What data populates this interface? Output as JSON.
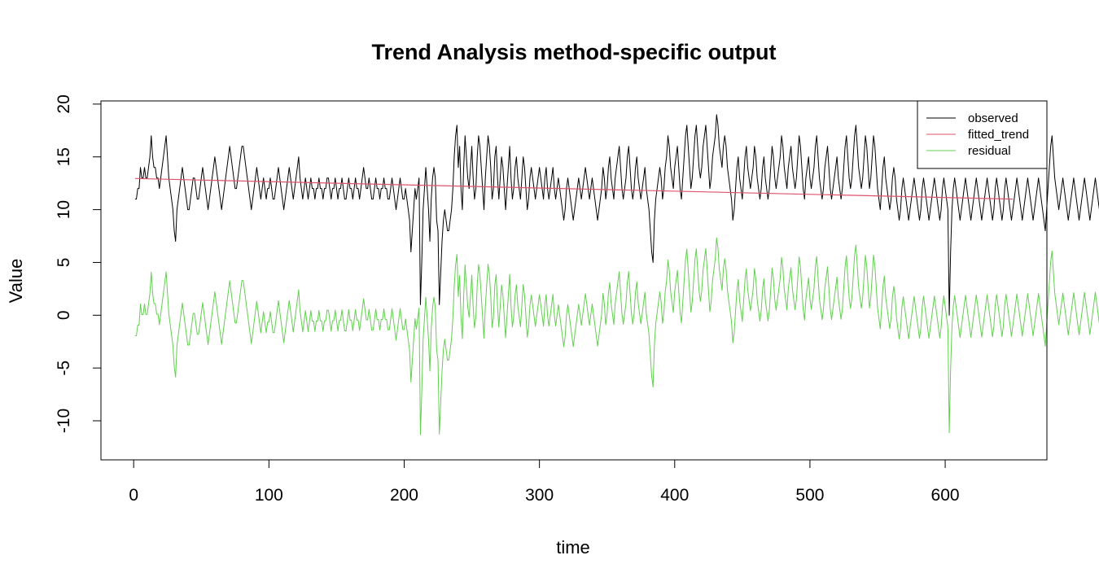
{
  "chart_data": {
    "type": "line",
    "title": "Trend Analysis method-specific output",
    "xlabel": "time",
    "ylabel": "Value",
    "xlim": [
      -24.2,
      675.2
    ],
    "ylim": [
      -13.7,
      20.3
    ],
    "xticks": [
      0,
      100,
      200,
      300,
      400,
      500,
      600
    ],
    "yticks": [
      -10,
      -5,
      0,
      5,
      10,
      15,
      20
    ],
    "legend_position": "top-right",
    "grid": false,
    "series": [
      {
        "name": "observed",
        "color": "#000000",
        "x_start": 1,
        "x_step": 1,
        "values": [
          11,
          11,
          12,
          12,
          14,
          13,
          13,
          14,
          13,
          13,
          14,
          15,
          17,
          15,
          14,
          14,
          13,
          13,
          12,
          13,
          14,
          15,
          16,
          17,
          15,
          13,
          12,
          11,
          10,
          8,
          7,
          10,
          11,
          12,
          13,
          14,
          13,
          12,
          11,
          10,
          10,
          11,
          12,
          13,
          13,
          12,
          11,
          11,
          12,
          13,
          14,
          13,
          12,
          11,
          10,
          11,
          12,
          13,
          14,
          15,
          14,
          13,
          12,
          11,
          10,
          11,
          12,
          13,
          14,
          15,
          16,
          15,
          14,
          13,
          12,
          12,
          13,
          14,
          15,
          16,
          16,
          15,
          14,
          13,
          12,
          11,
          10,
          11,
          12,
          13,
          14,
          13,
          12,
          11,
          12,
          13,
          12,
          11,
          12,
          12,
          13,
          12,
          11,
          11,
          12,
          13,
          14,
          13,
          12,
          11,
          10,
          11,
          12,
          13,
          14,
          13,
          12,
          11,
          12,
          13,
          14,
          15,
          13,
          12,
          11,
          12,
          13,
          12,
          11,
          12,
          13,
          12,
          12,
          11,
          12,
          12,
          13,
          12,
          12,
          11,
          12,
          12,
          13,
          13,
          12,
          11,
          12,
          12,
          13,
          12,
          11,
          12,
          12,
          13,
          12,
          11,
          11,
          12,
          13,
          12,
          12,
          11,
          12,
          13,
          12,
          12,
          11,
          12,
          13,
          14,
          13,
          12,
          12,
          13,
          12,
          11,
          11,
          12,
          13,
          12,
          12,
          11,
          12,
          12,
          13,
          12,
          12,
          11,
          11,
          12,
          13,
          12,
          11,
          10,
          11,
          12,
          13,
          12,
          11,
          11,
          12,
          11,
          10,
          9,
          6,
          8,
          10,
          12,
          11,
          12,
          13,
          1,
          5,
          10,
          12,
          14,
          12,
          10,
          7,
          11,
          13,
          14,
          13,
          9,
          8,
          1,
          4,
          7,
          9,
          10,
          9,
          8,
          8,
          9,
          10,
          12,
          15,
          17,
          18,
          14,
          16,
          12,
          10,
          14,
          17,
          15,
          13,
          12,
          14,
          16,
          13,
          11,
          12,
          15,
          17,
          16,
          14,
          12,
          10,
          13,
          15,
          17,
          16,
          14,
          11,
          12,
          15,
          16,
          13,
          11,
          13,
          15,
          14,
          12,
          10,
          12,
          14,
          16,
          13,
          11,
          12,
          14,
          15,
          13,
          12,
          11,
          13,
          15,
          14,
          12,
          10,
          11,
          13,
          14,
          13,
          12,
          11,
          12,
          13,
          14,
          13,
          12,
          11,
          13,
          14,
          12,
          11,
          12,
          13,
          14,
          12,
          11,
          12,
          13,
          12,
          11,
          10,
          9,
          10,
          12,
          13,
          12,
          11,
          10,
          9,
          10,
          11,
          12,
          13,
          12,
          11,
          12,
          13,
          14,
          13,
          12,
          11,
          12,
          13,
          12,
          11,
          10,
          9,
          10,
          11,
          12,
          14,
          13,
          11,
          12,
          14,
          15,
          13,
          12,
          11,
          13,
          14,
          15,
          16,
          14,
          12,
          11,
          12,
          13,
          15,
          16,
          14,
          12,
          11,
          12,
          14,
          15,
          13,
          12,
          11,
          12,
          13,
          14,
          12,
          11,
          10,
          8,
          6,
          5,
          9,
          11,
          12,
          13,
          14,
          13,
          11,
          12,
          14,
          15,
          17,
          16,
          14,
          13,
          12,
          14,
          15,
          16,
          14,
          12,
          11,
          13,
          15,
          17,
          18,
          16,
          14,
          12,
          13,
          15,
          17,
          18,
          16,
          14,
          13,
          14,
          16,
          17,
          18,
          16,
          14,
          12,
          13,
          15,
          16,
          17,
          19,
          18,
          16,
          15,
          14,
          16,
          17,
          16,
          14,
          13,
          12,
          11,
          9,
          10,
          12,
          14,
          15,
          13,
          12,
          11,
          13,
          15,
          16,
          14,
          13,
          12,
          13,
          14,
          16,
          15,
          13,
          12,
          11,
          12,
          14,
          15,
          13,
          12,
          11,
          12,
          14,
          16,
          15,
          13,
          12,
          13,
          14,
          15,
          17,
          16,
          14,
          13,
          12,
          14,
          15,
          16,
          14,
          13,
          12,
          13,
          15,
          17,
          16,
          14,
          12,
          11,
          13,
          14,
          15,
          13,
          12,
          13,
          14,
          16,
          17,
          15,
          13,
          12,
          11,
          12,
          14,
          15,
          16,
          14,
          12,
          11,
          12,
          13,
          14,
          15,
          13,
          12,
          11,
          12,
          14,
          16,
          17,
          15,
          13,
          12,
          13,
          15,
          17,
          18,
          16,
          14,
          13,
          12,
          13,
          15,
          17,
          16,
          14,
          12,
          13,
          15,
          17,
          16,
          14,
          12,
          11,
          10,
          12,
          14,
          15,
          13,
          12,
          11,
          10,
          11,
          13,
          14,
          13,
          11,
          10,
          9,
          10,
          12,
          13,
          12,
          11,
          10,
          9,
          10,
          11,
          12,
          13,
          12,
          11,
          10,
          9,
          10,
          12,
          13,
          12,
          11,
          10,
          9,
          10,
          11,
          12,
          13,
          12,
          11,
          10,
          9,
          10,
          12,
          13,
          12,
          11,
          10,
          0,
          6,
          10,
          12,
          13,
          12,
          11,
          10,
          9,
          10,
          11,
          12,
          13,
          12,
          11,
          10,
          9,
          10,
          11,
          12,
          13,
          12,
          11,
          10,
          9,
          10,
          11,
          12,
          13,
          12,
          11,
          10,
          9,
          10,
          12,
          13,
          12,
          11,
          10,
          9,
          10,
          12,
          13,
          12,
          11,
          10,
          9,
          10,
          11,
          12,
          13,
          12,
          11,
          10,
          9,
          10,
          11,
          12,
          13,
          12,
          11,
          10,
          9,
          10,
          11,
          12,
          13,
          12,
          11,
          10,
          9,
          8,
          10,
          12,
          14,
          16,
          17,
          15,
          13,
          12,
          11,
          10,
          11,
          12,
          13,
          12,
          11,
          10,
          9,
          10,
          11,
          12,
          13,
          12,
          11,
          10,
          9,
          10,
          11,
          12,
          13,
          12,
          11,
          10,
          9,
          10,
          11,
          12,
          13,
          12,
          11,
          10,
          9,
          10,
          11,
          12,
          13,
          12,
          11
        ]
      },
      {
        "name": "fitted_trend",
        "color": "#df536b",
        "x": [
          1,
          650
        ],
        "values": [
          12.95,
          11.0
        ]
      },
      {
        "name": "residual",
        "color": "#61d04f",
        "x_start": 1,
        "x_step": 1,
        "values": []
      }
    ]
  }
}
